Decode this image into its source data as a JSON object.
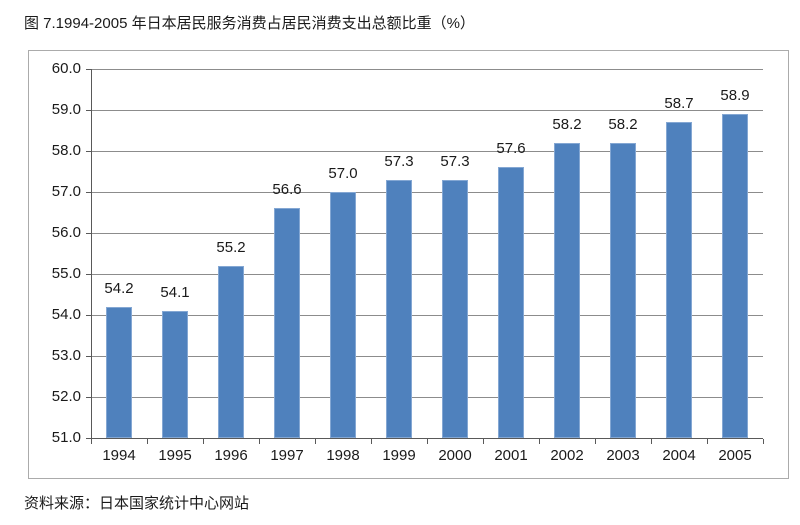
{
  "title": "图 7.1994-2005 年日本居民服务消费占居民消费支出总额比重（%）",
  "source_note": "资料来源：日本国家统计中心网站",
  "chart_data": {
    "type": "bar",
    "title": "图 7.1994-2005 年日本居民服务消费占居民消费支出总额比重（%）",
    "categories": [
      "1994",
      "1995",
      "1996",
      "1997",
      "1998",
      "1999",
      "2000",
      "2001",
      "2002",
      "2003",
      "2004",
      "2005"
    ],
    "values": [
      54.2,
      54.1,
      55.2,
      56.6,
      57.0,
      57.3,
      57.3,
      57.6,
      58.2,
      58.2,
      58.7,
      58.9
    ],
    "value_label_decimals": 1,
    "xlabel": "",
    "ylabel": "",
    "ylim": [
      51.0,
      60.0
    ],
    "ytick_step": 1.0,
    "ytick_label_decimals": 1,
    "grid": true,
    "legend_position": "none",
    "bar_color": "#4f81bd",
    "bar_border_color": "#84a7d3",
    "gridline_color": "#8c8c8c",
    "axis_color": "#595959",
    "source_note": "资料来源：日本国家统计中心网站"
  }
}
